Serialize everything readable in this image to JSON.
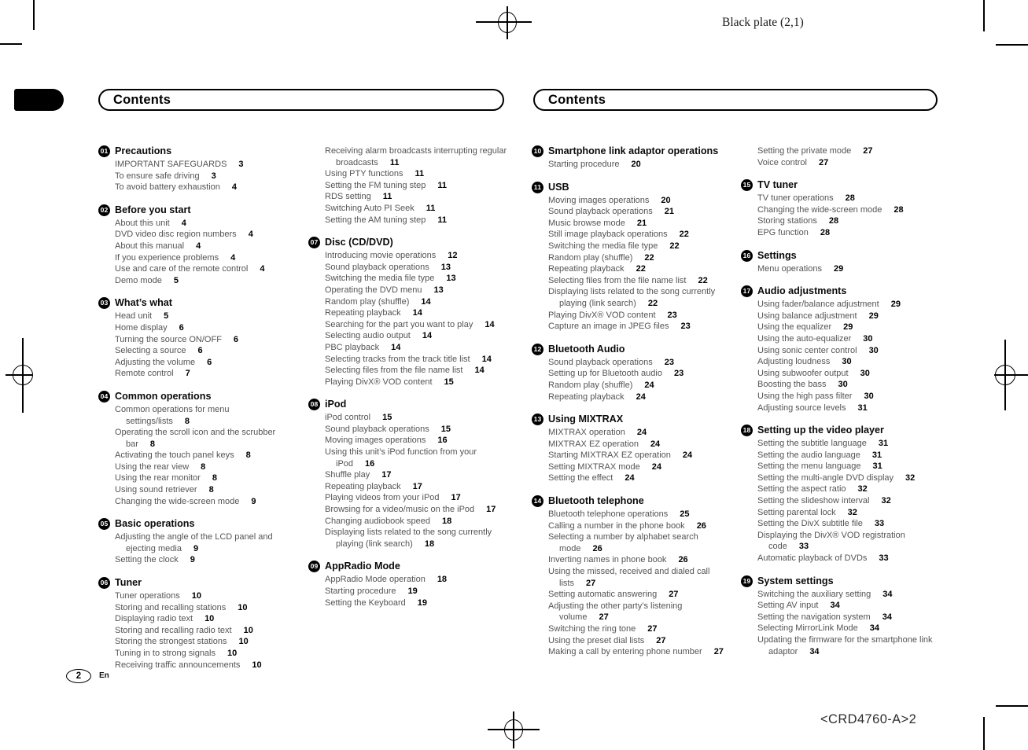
{
  "header": {
    "plate_note": "Black plate (2,1)",
    "contents_left": "Contents",
    "contents_right": "Contents"
  },
  "footer": {
    "page_number": "2",
    "language": "En",
    "plate_code": "<CRD4760-A>2"
  },
  "toc_columns": [
    {
      "sections": [
        {
          "num": "01",
          "title": "Precautions",
          "entries": [
            {
              "t": "IMPORTANT SAFEGUARDS",
              "p": "3"
            },
            {
              "t": "To ensure safe driving",
              "p": "3"
            },
            {
              "t": "To avoid battery exhaustion",
              "p": "4"
            }
          ]
        },
        {
          "num": "02",
          "title": "Before you start",
          "entries": [
            {
              "t": "About this unit",
              "p": "4"
            },
            {
              "t": "DVD video disc region numbers",
              "p": "4"
            },
            {
              "t": "About this manual",
              "p": "4"
            },
            {
              "t": "If you experience problems",
              "p": "4"
            },
            {
              "t": "Use and care of the remote control",
              "p": "4"
            },
            {
              "t": "Demo mode",
              "p": "5"
            }
          ]
        },
        {
          "num": "03",
          "title": "What’s what",
          "entries": [
            {
              "t": "Head unit",
              "p": "5"
            },
            {
              "t": "Home display",
              "p": "6"
            },
            {
              "t": "Turning the source ON/OFF",
              "p": "6"
            },
            {
              "t": "Selecting a source",
              "p": "6"
            },
            {
              "t": "Adjusting the volume",
              "p": "6"
            },
            {
              "t": "Remote control",
              "p": "7"
            }
          ]
        },
        {
          "num": "04",
          "title": "Common operations",
          "entries": [
            {
              "t": "Common operations for menu settings/lists",
              "p": "8"
            },
            {
              "t": "Operating the scroll icon and the scrubber bar",
              "p": "8"
            },
            {
              "t": "Activating the touch panel keys",
              "p": "8"
            },
            {
              "t": "Using the rear view",
              "p": "8"
            },
            {
              "t": "Using the rear monitor",
              "p": "8"
            },
            {
              "t": "Using sound retriever",
              "p": "8"
            },
            {
              "t": "Changing the wide-screen mode",
              "p": "9"
            }
          ]
        },
        {
          "num": "05",
          "title": "Basic operations",
          "entries": [
            {
              "t": "Adjusting the angle of the LCD panel and ejecting media",
              "p": "9"
            },
            {
              "t": "Setting the clock",
              "p": "9"
            }
          ]
        },
        {
          "num": "06",
          "title": "Tuner",
          "entries": [
            {
              "t": "Tuner operations",
              "p": "10"
            },
            {
              "t": "Storing and recalling stations",
              "p": "10"
            },
            {
              "t": "Displaying radio text",
              "p": "10"
            },
            {
              "t": "Storing and recalling radio text",
              "p": "10"
            },
            {
              "t": "Storing the strongest stations",
              "p": "10"
            },
            {
              "t": "Tuning in to strong signals",
              "p": "10"
            },
            {
              "t": "Receiving traffic announcements",
              "p": "10"
            }
          ]
        }
      ]
    },
    {
      "sections": [
        {
          "num": null,
          "title": null,
          "entries": [
            {
              "t": "Receiving alarm broadcasts interrupting regular broadcasts",
              "p": "11"
            },
            {
              "t": "Using PTY functions",
              "p": "11"
            },
            {
              "t": "Setting the FM tuning step",
              "p": "11"
            },
            {
              "t": "RDS setting",
              "p": "11"
            },
            {
              "t": "Switching Auto PI Seek",
              "p": "11"
            },
            {
              "t": "Setting the AM tuning step",
              "p": "11"
            }
          ]
        },
        {
          "num": "07",
          "title": "Disc (CD/DVD)",
          "entries": [
            {
              "t": "Introducing movie operations",
              "p": "12"
            },
            {
              "t": "Sound playback operations",
              "p": "13"
            },
            {
              "t": "Switching the media file type",
              "p": "13"
            },
            {
              "t": "Operating the DVD menu",
              "p": "13"
            },
            {
              "t": "Random play (shuffle)",
              "p": "14"
            },
            {
              "t": "Repeating playback",
              "p": "14"
            },
            {
              "t": "Searching for the part you want to play",
              "p": "14"
            },
            {
              "t": "Selecting audio output",
              "p": "14"
            },
            {
              "t": "PBC playback",
              "p": "14"
            },
            {
              "t": "Selecting tracks from the track title list",
              "p": "14"
            },
            {
              "t": "Selecting files from the file name list",
              "p": "14"
            },
            {
              "t": "Playing DivX® VOD content",
              "p": "15"
            }
          ]
        },
        {
          "num": "08",
          "title": "iPod",
          "entries": [
            {
              "t": "iPod control",
              "p": "15"
            },
            {
              "t": "Sound playback operations",
              "p": "15"
            },
            {
              "t": "Moving images operations",
              "p": "16"
            },
            {
              "t": "Using this unit’s iPod function from your iPod",
              "p": "16"
            },
            {
              "t": "Shuffle play",
              "p": "17"
            },
            {
              "t": "Repeating playback",
              "p": "17"
            },
            {
              "t": "Playing videos from your iPod",
              "p": "17"
            },
            {
              "t": "Browsing for a video/music on the iPod",
              "p": "17"
            },
            {
              "t": "Changing audiobook speed",
              "p": "18"
            },
            {
              "t": "Displaying lists related to the song currently playing (link search)",
              "p": "18"
            }
          ]
        },
        {
          "num": "09",
          "title": "AppRadio Mode",
          "entries": [
            {
              "t": "AppRadio Mode operation",
              "p": "18"
            },
            {
              "t": "Starting procedure",
              "p": "19"
            },
            {
              "t": "Setting the Keyboard",
              "p": "19"
            }
          ]
        }
      ]
    },
    {
      "sections": [
        {
          "num": "10",
          "title": "Smartphone link adaptor operations",
          "entries": [
            {
              "t": "Starting procedure",
              "p": "20"
            }
          ]
        },
        {
          "num": "11",
          "title": "USB",
          "entries": [
            {
              "t": "Moving images operations",
              "p": "20"
            },
            {
              "t": "Sound playback operations",
              "p": "21"
            },
            {
              "t": "Music browse mode",
              "p": "21"
            },
            {
              "t": "Still image playback operations",
              "p": "22"
            },
            {
              "t": "Switching the media file type",
              "p": "22"
            },
            {
              "t": "Random play (shuffle)",
              "p": "22"
            },
            {
              "t": "Repeating playback",
              "p": "22"
            },
            {
              "t": "Selecting files from the file name list",
              "p": "22"
            },
            {
              "t": "Displaying lists related to the song currently playing (link search)",
              "p": "22"
            },
            {
              "t": "Playing DivX® VOD content",
              "p": "23"
            },
            {
              "t": "Capture an image in JPEG files",
              "p": "23"
            }
          ]
        },
        {
          "num": "12",
          "title": "Bluetooth Audio",
          "entries": [
            {
              "t": "Sound playback operations",
              "p": "23"
            },
            {
              "t": "Setting up for Bluetooth audio",
              "p": "23"
            },
            {
              "t": "Random play (shuffle)",
              "p": "24"
            },
            {
              "t": "Repeating playback",
              "p": "24"
            }
          ]
        },
        {
          "num": "13",
          "title": "Using MIXTRAX",
          "entries": [
            {
              "t": "MIXTRAX operation",
              "p": "24"
            },
            {
              "t": "MIXTRAX EZ operation",
              "p": "24"
            },
            {
              "t": "Starting MIXTRAX EZ operation",
              "p": "24"
            },
            {
              "t": "Setting MIXTRAX mode",
              "p": "24"
            },
            {
              "t": "Setting the effect",
              "p": "24"
            }
          ]
        },
        {
          "num": "14",
          "title": "Bluetooth telephone",
          "entries": [
            {
              "t": "Bluetooth telephone operations",
              "p": "25"
            },
            {
              "t": "Calling a number in the phone book",
              "p": "26"
            },
            {
              "t": "Selecting a number by alphabet search mode",
              "p": "26"
            },
            {
              "t": "Inverting names in phone book",
              "p": "26"
            },
            {
              "t": "Using the missed, received and dialed call lists",
              "p": "27"
            },
            {
              "t": "Setting automatic answering",
              "p": "27"
            },
            {
              "t": "Adjusting the other party’s listening volume",
              "p": "27"
            },
            {
              "t": "Switching the ring tone",
              "p": "27"
            },
            {
              "t": "Using the preset dial lists",
              "p": "27"
            },
            {
              "t": "Making a call by entering phone number",
              "p": "27"
            }
          ]
        }
      ]
    },
    {
      "sections": [
        {
          "num": null,
          "title": null,
          "entries": [
            {
              "t": "Setting the private mode",
              "p": "27"
            },
            {
              "t": "Voice control",
              "p": "27"
            }
          ]
        },
        {
          "num": "15",
          "title": "TV tuner",
          "entries": [
            {
              "t": "TV tuner operations",
              "p": "28"
            },
            {
              "t": "Changing the wide-screen mode",
              "p": "28"
            },
            {
              "t": "Storing stations",
              "p": "28"
            },
            {
              "t": "EPG function",
              "p": "28"
            }
          ]
        },
        {
          "num": "16",
          "title": "Settings",
          "entries": [
            {
              "t": "Menu operations",
              "p": "29"
            }
          ]
        },
        {
          "num": "17",
          "title": "Audio adjustments",
          "entries": [
            {
              "t": "Using fader/balance adjustment",
              "p": "29"
            },
            {
              "t": "Using balance adjustment",
              "p": "29"
            },
            {
              "t": "Using the equalizer",
              "p": "29"
            },
            {
              "t": "Using the auto-equalizer",
              "p": "30"
            },
            {
              "t": "Using sonic center control",
              "p": "30"
            },
            {
              "t": "Adjusting loudness",
              "p": "30"
            },
            {
              "t": "Using subwoofer output",
              "p": "30"
            },
            {
              "t": "Boosting the bass",
              "p": "30"
            },
            {
              "t": "Using the high pass filter",
              "p": "30"
            },
            {
              "t": "Adjusting source levels",
              "p": "31"
            }
          ]
        },
        {
          "num": "18",
          "title": "Setting up the video player",
          "entries": [
            {
              "t": "Setting the subtitle language",
              "p": "31"
            },
            {
              "t": "Setting the audio language",
              "p": "31"
            },
            {
              "t": "Setting the menu language",
              "p": "31"
            },
            {
              "t": "Setting the multi-angle DVD display",
              "p": "32"
            },
            {
              "t": "Setting the aspect ratio",
              "p": "32"
            },
            {
              "t": "Setting the slideshow interval",
              "p": "32"
            },
            {
              "t": "Setting parental lock",
              "p": "32"
            },
            {
              "t": "Setting the DivX subtitle file",
              "p": "33"
            },
            {
              "t": "Displaying the DivX® VOD registration code",
              "p": "33"
            },
            {
              "t": "Automatic playback of DVDs",
              "p": "33"
            }
          ]
        },
        {
          "num": "19",
          "title": "System settings",
          "entries": [
            {
              "t": "Switching the auxiliary setting",
              "p": "34"
            },
            {
              "t": "Setting AV input",
              "p": "34"
            },
            {
              "t": "Setting the navigation system",
              "p": "34"
            },
            {
              "t": "Selecting MirrorLink Mode",
              "p": "34"
            },
            {
              "t": "Updating the firmware for the smartphone link adaptor",
              "p": "34"
            }
          ]
        }
      ]
    }
  ]
}
